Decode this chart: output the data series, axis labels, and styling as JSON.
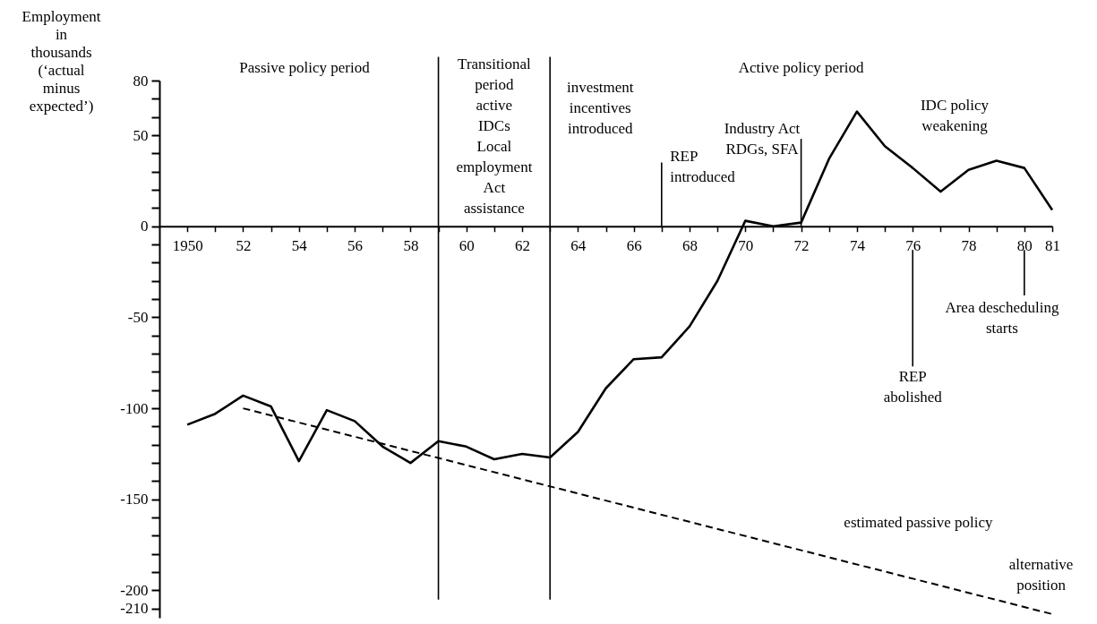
{
  "chart_data": {
    "type": "line",
    "ylabel": "Employment\nin\nthousands\n\n(‘actual\nminus\nexpected’)",
    "x": [
      1950,
      1951,
      1952,
      1953,
      1954,
      1955,
      1956,
      1957,
      1958,
      1959,
      1960,
      1961,
      1962,
      1963,
      1964,
      1965,
      1966,
      1967,
      1968,
      1969,
      1970,
      1971,
      1972,
      1973,
      1974,
      1975,
      1976,
      1977,
      1978,
      1979,
      1980,
      1981
    ],
    "series": [
      {
        "color": "#000000",
        "values": [
          -109,
          -103,
          -93,
          -99,
          -129,
          -101,
          -107,
          -121,
          -130,
          -118,
          -121,
          -128,
          -125,
          -127,
          -113,
          -89,
          -73,
          -72,
          -55,
          -30,
          3,
          0,
          2,
          37,
          63,
          44,
          32,
          19,
          31,
          36,
          32,
          9
        ]
      },
      {
        "name": "estimated passive policy",
        "color": "#000000",
        "line_style": "dashed",
        "x": [
          1952,
          1981
        ],
        "values": [
          -100,
          -213
        ]
      }
    ],
    "xlim": [
      1949,
      1981
    ],
    "ylim": [
      -215,
      80
    ],
    "xticks": [
      1950,
      {
        "value": 1951,
        "label": null
      },
      {
        "value": 1952,
        "label": "52"
      },
      {
        "value": 1953,
        "label": null
      },
      {
        "value": 1954,
        "label": "54"
      },
      {
        "value": 1955,
        "label": null
      },
      {
        "value": 1956,
        "label": "56"
      },
      {
        "value": 1957,
        "label": null
      },
      {
        "value": 1958,
        "label": "58"
      },
      {
        "value": 1959,
        "label": null
      },
      {
        "value": 1960,
        "label": "60"
      },
      {
        "value": 1961,
        "label": null
      },
      {
        "value": 1962,
        "label": "62"
      },
      {
        "value": 1963,
        "label": null
      },
      {
        "value": 1964,
        "label": "64"
      },
      {
        "value": 1965,
        "label": null
      },
      {
        "value": 1966,
        "label": "66"
      },
      {
        "value": 1967,
        "label": null
      },
      {
        "value": 1968,
        "label": "68"
      },
      {
        "value": 1969,
        "label": null
      },
      {
        "value": 1970,
        "label": "70"
      },
      {
        "value": 1971,
        "label": null
      },
      {
        "value": 1972,
        "label": "72"
      },
      {
        "value": 1973,
        "label": null
      },
      {
        "value": 1974,
        "label": "74"
      },
      {
        "value": 1975,
        "label": null
      },
      {
        "value": 1976,
        "label": "76"
      },
      {
        "value": 1977,
        "label": null
      },
      {
        "value": 1978,
        "label": "78"
      },
      {
        "value": 1979,
        "label": null
      },
      {
        "value": 1980,
        "label": "80"
      },
      {
        "value": 1981,
        "label": "81"
      }
    ],
    "yticks": [
      80,
      {
        "value": 70,
        "label": null
      },
      {
        "value": 60,
        "label": null
      },
      50,
      {
        "value": 40,
        "label": null
      },
      {
        "value": 30,
        "label": null
      },
      {
        "value": 20,
        "label": null
      },
      {
        "value": 10,
        "label": null
      },
      0,
      {
        "value": -10,
        "label": null
      },
      {
        "value": -20,
        "label": null
      },
      {
        "value": -30,
        "label": null
      },
      {
        "value": -40,
        "label": null
      },
      -50,
      {
        "value": -60,
        "label": null
      },
      {
        "value": -70,
        "label": null
      },
      {
        "value": -80,
        "label": null
      },
      {
        "value": -90,
        "label": null
      },
      -100,
      {
        "value": -110,
        "label": null
      },
      {
        "value": -120,
        "label": null
      },
      {
        "value": -130,
        "label": null
      },
      {
        "value": -140,
        "label": null
      },
      -150,
      {
        "value": -160,
        "label": null
      },
      {
        "value": -170,
        "label": null
      },
      {
        "value": -180,
        "label": null
      },
      {
        "value": -190,
        "label": null
      },
      -200,
      -210
    ],
    "ref_lines": [
      {
        "axis": "x",
        "value": 1959
      },
      {
        "axis": "x",
        "value": 1963
      },
      {
        "axis": "x",
        "value": 1967,
        "label": "REP\nintroduced"
      },
      {
        "axis": "x",
        "value": 1972,
        "label": "Industry Act\nRDGs, SFA"
      },
      {
        "axis": "x",
        "value": 1976,
        "label": "REP\nabolished"
      },
      {
        "axis": "x",
        "value": 1980,
        "label": "Area descheduling\nstarts"
      }
    ],
    "annotations": [
      "Passive policy period",
      "Transitional\nperiod\nactive\nIDCs\nLocal\nemployment\nAct\nassistance",
      "investment\nincentives\nintroduced",
      "Active policy period",
      "IDC policy\nweakening",
      "alternative\nposition"
    ]
  }
}
